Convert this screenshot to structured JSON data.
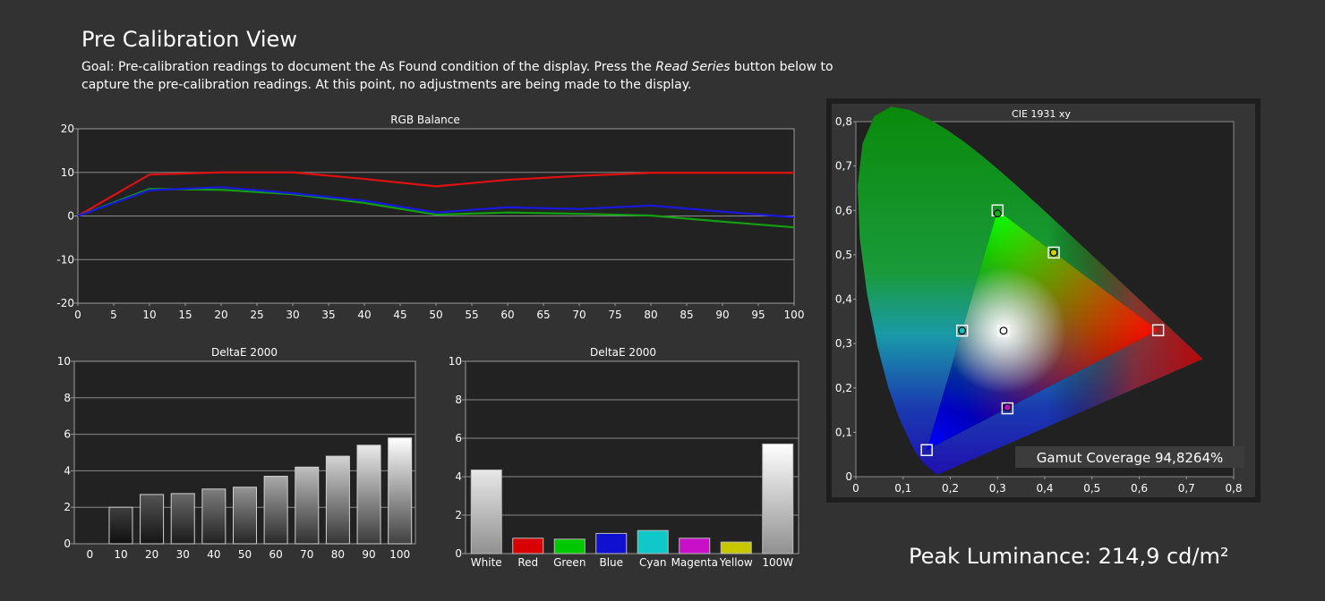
{
  "header": {
    "title": "Pre Calibration View",
    "goal_prefix": "Goal: Pre-calibration readings to document the As Found condition of the display. Press the ",
    "goal_emphasis": "Read Series",
    "goal_suffix": " button below to capture the pre-calibration readings. At this point, no adjustments are being made to the display."
  },
  "peak_luminance": "Peak Luminance: 214,9 cd/m²",
  "colors": {
    "background": "#323232",
    "plot_bg": "#222222",
    "red": "#e01010",
    "green": "#10a010",
    "blue": "#1818e0"
  },
  "chart_data": [
    {
      "id": "rgb",
      "type": "line",
      "title": "RGB Balance",
      "x": [
        0,
        10,
        20,
        30,
        40,
        50,
        60,
        70,
        80,
        90,
        100
      ],
      "xticks": [
        "0",
        "5",
        "10",
        "15",
        "20",
        "25",
        "30",
        "35",
        "40",
        "45",
        "50",
        "55",
        "60",
        "65",
        "70",
        "75",
        "80",
        "85",
        "90",
        "95",
        "100"
      ],
      "xlim": [
        0,
        100
      ],
      "ylim": [
        -20,
        20
      ],
      "yticks": [
        "20",
        "10",
        "0",
        "-10",
        "-20"
      ],
      "series": [
        {
          "color": "#e01010",
          "values": [
            0,
            9.5,
            10,
            10,
            8.5,
            6.8,
            8.3,
            9.2,
            9.9,
            9.9,
            9.9
          ]
        },
        {
          "color": "#10a010",
          "values": [
            0,
            6.2,
            6,
            5,
            3,
            0.3,
            0.8,
            0.5,
            0.1,
            -1.3,
            -2.6
          ]
        },
        {
          "color": "#1818e0",
          "values": [
            0,
            5.9,
            6.6,
            5.2,
            3.5,
            0.8,
            2,
            1.6,
            2.4,
            1,
            -0.3
          ]
        }
      ]
    },
    {
      "id": "de_gray",
      "type": "bar",
      "title": "DeltaE 2000",
      "categories": [
        "0",
        "10",
        "20",
        "30",
        "40",
        "50",
        "60",
        "70",
        "80",
        "90",
        "100"
      ],
      "values": [
        0,
        2.0,
        2.7,
        2.75,
        3.0,
        3.1,
        3.7,
        4.2,
        4.8,
        5.4,
        5.8
      ],
      "ylim": [
        0,
        10
      ],
      "yticks": [
        "10",
        "8",
        "6",
        "4",
        "2",
        "0"
      ]
    },
    {
      "id": "de_color",
      "type": "bar",
      "title": "DeltaE 2000",
      "categories": [
        "White",
        "Red",
        "Green",
        "Blue",
        "Cyan",
        "Magenta",
        "Yellow",
        "100W"
      ],
      "values": [
        4.35,
        0.8,
        0.75,
        1.05,
        1.2,
        0.8,
        0.6,
        5.7
      ],
      "colors": [
        "#e8e8e8",
        "#d80000",
        "#00c800",
        "#1010d0",
        "#10c8c8",
        "#c810c8",
        "#c8c800",
        "#ffffff"
      ],
      "ylim": [
        0,
        10
      ],
      "yticks": [
        "10",
        "8",
        "6",
        "4",
        "2",
        "0"
      ]
    },
    {
      "id": "cie",
      "type": "scatter",
      "title": "CIE 1931 xy",
      "xlim": [
        0,
        0.8
      ],
      "ylim": [
        0,
        0.8
      ],
      "xticks": [
        "0",
        "0,1",
        "0,2",
        "0,3",
        "0,4",
        "0,5",
        "0,6",
        "0,7",
        "0,8"
      ],
      "yticks": [
        "0,8",
        "0,7",
        "0,6",
        "0,5",
        "0,4",
        "0,3",
        "0,2",
        "0,1",
        "0"
      ],
      "targets": [
        {
          "x": 0.64,
          "y": 0.33
        },
        {
          "x": 0.3,
          "y": 0.6
        },
        {
          "x": 0.15,
          "y": 0.06
        },
        {
          "x": 0.225,
          "y": 0.329
        },
        {
          "x": 0.321,
          "y": 0.154
        },
        {
          "x": 0.419,
          "y": 0.505
        },
        {
          "x": 0.3127,
          "y": 0.329
        }
      ],
      "measured": [
        {
          "x": 0.3,
          "y": 0.593,
          "color": "#10b010"
        },
        {
          "x": 0.419,
          "y": 0.505,
          "color": "#d0d000"
        },
        {
          "x": 0.225,
          "y": 0.329,
          "color": "#10c0c0"
        },
        {
          "x": 0.3127,
          "y": 0.329,
          "color": "#ffffff"
        },
        {
          "x": 0.321,
          "y": 0.156,
          "color": "#c010c0"
        }
      ],
      "gamut_coverage": "Gamut Coverage 94,8264%"
    }
  ]
}
